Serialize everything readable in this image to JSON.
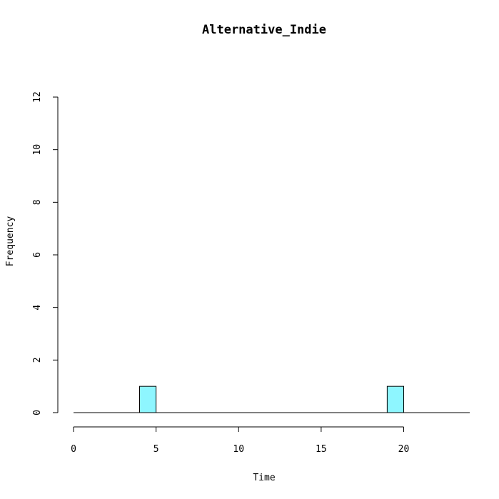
{
  "chart_data": {
    "type": "bar",
    "title": "Alternative_Indie",
    "xlabel": "Time",
    "ylabel": "Frequency",
    "xlim": [
      0,
      24
    ],
    "ylim": [
      0,
      12
    ],
    "x_ticks": [
      0,
      5,
      10,
      15,
      20
    ],
    "y_ticks": [
      0,
      2,
      4,
      6,
      8,
      10,
      12
    ],
    "bin_width": 1,
    "bins": [
      {
        "start": 4,
        "end": 5,
        "count": 1
      },
      {
        "start": 19,
        "end": 20,
        "count": 1
      }
    ],
    "bar_color": "#8EF6FF",
    "grid": false,
    "legend": "none"
  }
}
